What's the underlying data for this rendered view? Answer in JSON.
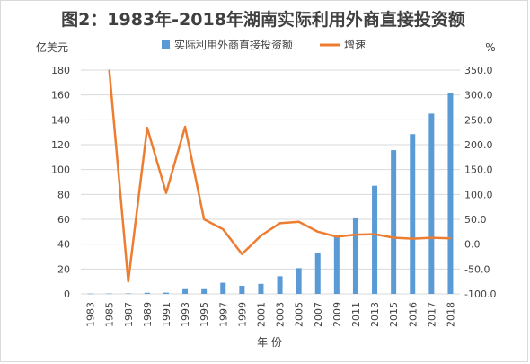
{
  "chart_data": {
    "type": "bar",
    "title": "图2：1983年-2018年湖南实际利用外商直接投资额",
    "xlabel": "年 份",
    "ylabel": "亿美元",
    "y2label": "%",
    "legend_position": "top",
    "grid": true,
    "categories": [
      "1983",
      "1985",
      "1987",
      "1989",
      "1991",
      "1993",
      "1995",
      "1997",
      "1999",
      "2001",
      "2003",
      "2005",
      "2007",
      "2009",
      "2011",
      "2013",
      "2015",
      "2016",
      "2017",
      "2018"
    ],
    "ylim": [
      0,
      180
    ],
    "yticks": [
      "0",
      "20",
      "40",
      "60",
      "80",
      "100",
      "120",
      "140",
      "160",
      "180"
    ],
    "y2lim": [
      -100,
      350
    ],
    "y2ticks": [
      "-100.0",
      "-50.0",
      "0.0",
      "50.0",
      "100.0",
      "150.0",
      "200.0",
      "250.0",
      "300.0",
      "350.0"
    ],
    "series": [
      {
        "name": "实际利用外商直接投资额",
        "type": "bar",
        "axis": "left",
        "color": "#5b9bd5",
        "values": [
          0.2,
          0.3,
          0.4,
          0.9,
          1.0,
          4.5,
          4.5,
          9.0,
          6.5,
          8.1,
          14.2,
          20.7,
          32.7,
          46.0,
          61.5,
          87.0,
          115.6,
          128.5,
          145.0,
          161.9
        ]
      },
      {
        "name": "增速",
        "type": "line",
        "axis": "right",
        "color": "#ed7d31",
        "values": [
          null,
          350.0,
          -75.0,
          234.0,
          103.0,
          236.0,
          50.0,
          30.0,
          -20.0,
          17.0,
          42.0,
          45.0,
          25.0,
          15.0,
          19.0,
          20.0,
          13.0,
          11.0,
          12.8,
          11.6
        ]
      }
    ]
  }
}
